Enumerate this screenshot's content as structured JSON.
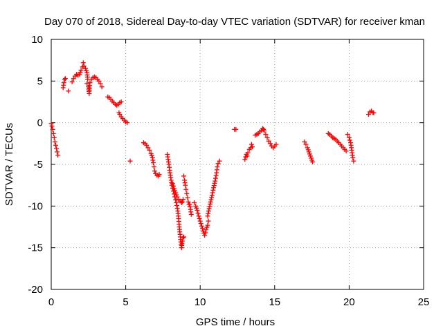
{
  "chart_data": {
    "type": "scatter",
    "title": "Day 070 of 2018, Sidereal Day-to-day VTEC variation (SDTVAR) for receiver kman",
    "xlabel": "GPS time / hours",
    "ylabel": "SDTVAR / TECUs",
    "xlim": [
      0,
      25
    ],
    "ylim": [
      -20,
      10
    ],
    "xticks": [
      0,
      5,
      10,
      15,
      20,
      25
    ],
    "yticks": [
      -20,
      -15,
      -10,
      -5,
      0,
      5,
      10
    ],
    "grid": true,
    "marker": "+",
    "series": [
      {
        "name": "SDTVAR",
        "color": "#ff0000",
        "segments": [
          [
            [
              0.0,
              -0.1
            ],
            [
              0.05,
              -0.4
            ],
            [
              0.1,
              -0.8
            ],
            [
              0.15,
              -1.3
            ],
            [
              0.2,
              -1.8
            ],
            [
              0.25,
              -2.3
            ],
            [
              0.3,
              -2.7
            ],
            [
              0.35,
              -3.1
            ],
            [
              0.4,
              -3.5
            ],
            [
              0.45,
              -3.9
            ]
          ],
          [
            [
              0.8,
              4.2
            ],
            [
              0.85,
              4.8
            ],
            [
              0.9,
              5.2
            ],
            [
              0.95,
              5.3
            ]
          ],
          [
            [
              1.15,
              3.8
            ]
          ],
          [
            [
              1.4,
              4.9
            ],
            [
              1.5,
              5.3
            ],
            [
              1.6,
              5.6
            ],
            [
              1.7,
              5.8
            ],
            [
              1.8,
              5.7
            ],
            [
              1.9,
              5.8
            ],
            [
              2.0,
              6.3
            ],
            [
              2.1,
              6.7
            ],
            [
              2.15,
              7.2
            ],
            [
              2.2,
              6.8
            ],
            [
              2.3,
              6.5
            ],
            [
              2.4,
              6.0
            ],
            [
              2.45,
              5.2
            ]
          ],
          [
            [
              2.4,
              4.7
            ],
            [
              2.5,
              4.3
            ],
            [
              2.55,
              3.5
            ],
            [
              2.6,
              4.8
            ],
            [
              2.7,
              5.2
            ],
            [
              2.8,
              5.4
            ],
            [
              2.9,
              5.5
            ],
            [
              3.0,
              5.4
            ],
            [
              3.1,
              5.2
            ],
            [
              3.2,
              5.0
            ],
            [
              3.3,
              4.7
            ],
            [
              3.4,
              4.3
            ]
          ],
          [
            [
              3.8,
              3.1
            ],
            [
              3.9,
              3.0
            ],
            [
              4.0,
              2.8
            ],
            [
              4.1,
              2.6
            ],
            [
              4.2,
              2.4
            ],
            [
              4.3,
              2.2
            ],
            [
              4.4,
              2.1
            ],
            [
              4.5,
              2.2
            ],
            [
              4.6,
              2.4
            ],
            [
              4.7,
              2.5
            ]
          ],
          [
            [
              4.55,
              1.2
            ],
            [
              4.6,
              1.0
            ],
            [
              4.7,
              0.7
            ],
            [
              4.8,
              0.5
            ],
            [
              4.9,
              0.3
            ],
            [
              5.0,
              0.1
            ],
            [
              5.1,
              0.0
            ]
          ],
          [
            [
              5.3,
              -4.6
            ]
          ],
          [
            [
              6.2,
              -2.4
            ],
            [
              6.3,
              -2.5
            ],
            [
              6.4,
              -2.7
            ],
            [
              6.5,
              -3.0
            ],
            [
              6.6,
              -3.3
            ],
            [
              6.7,
              -3.7
            ],
            [
              6.8,
              -4.2
            ],
            [
              6.85,
              -4.8
            ],
            [
              6.9,
              -5.3
            ],
            [
              6.95,
              -5.8
            ],
            [
              7.0,
              -6.1
            ],
            [
              7.1,
              -6.3
            ],
            [
              7.2,
              -6.4
            ],
            [
              7.25,
              -6.2
            ]
          ],
          [
            [
              7.8,
              -3.8
            ],
            [
              7.85,
              -4.4
            ],
            [
              7.9,
              -5.0
            ],
            [
              7.95,
              -5.7
            ],
            [
              8.0,
              -6.3
            ],
            [
              8.05,
              -6.9
            ],
            [
              8.1,
              -7.5
            ],
            [
              8.2,
              -8.2
            ],
            [
              8.3,
              -8.9
            ],
            [
              8.4,
              -9.6
            ],
            [
              8.5,
              -10.6
            ],
            [
              8.55,
              -11.5
            ],
            [
              8.6,
              -12.5
            ],
            [
              8.65,
              -13.4
            ],
            [
              8.7,
              -14.3
            ],
            [
              8.75,
              -15.0
            ],
            [
              8.8,
              -14.2
            ],
            [
              8.85,
              -13.8
            ],
            [
              8.9,
              -13.7
            ]
          ],
          [
            [
              8.15,
              -7.3
            ],
            [
              8.25,
              -7.9
            ],
            [
              8.35,
              -8.4
            ],
            [
              8.45,
              -8.9
            ],
            [
              8.55,
              -9.2
            ],
            [
              8.65,
              -9.4
            ],
            [
              8.75,
              -9.6
            ],
            [
              8.8,
              -9.5
            ],
            [
              8.85,
              -9.2
            ]
          ],
          [
            [
              8.9,
              -6.4
            ],
            [
              8.95,
              -6.9
            ],
            [
              9.0,
              -7.5
            ],
            [
              9.05,
              -8.0
            ],
            [
              9.1,
              -8.5
            ],
            [
              9.15,
              -9.0
            ],
            [
              9.2,
              -9.5
            ],
            [
              9.25,
              -9.8
            ]
          ],
          [
            [
              9.3,
              -9.8
            ],
            [
              9.35,
              -10.4
            ],
            [
              9.4,
              -11.0
            ]
          ],
          [
            [
              9.6,
              -9.6
            ],
            [
              9.7,
              -10.0
            ],
            [
              9.8,
              -10.5
            ],
            [
              9.9,
              -11.2
            ],
            [
              10.0,
              -11.8
            ],
            [
              10.1,
              -12.4
            ],
            [
              10.2,
              -13.0
            ],
            [
              10.3,
              -13.5
            ],
            [
              10.35,
              -13.2
            ],
            [
              10.4,
              -12.8
            ],
            [
              10.5,
              -12.3
            ],
            [
              10.55,
              -11.8
            ]
          ],
          [
            [
              10.5,
              -11.2
            ],
            [
              10.6,
              -10.3
            ],
            [
              10.7,
              -9.5
            ],
            [
              10.8,
              -8.7
            ],
            [
              10.9,
              -7.8
            ],
            [
              11.0,
              -7.0
            ],
            [
              11.1,
              -6.0
            ],
            [
              11.15,
              -5.3
            ],
            [
              11.2,
              -4.9
            ],
            [
              11.3,
              -4.6
            ]
          ],
          [
            [
              12.3,
              -0.8
            ],
            [
              12.4,
              -0.8
            ]
          ],
          [
            [
              13.0,
              -4.4
            ],
            [
              13.05,
              -4.1
            ],
            [
              13.1,
              -3.8
            ],
            [
              13.15,
              -4.0
            ],
            [
              13.2,
              -3.6
            ],
            [
              13.3,
              -3.2
            ],
            [
              13.4,
              -3.0
            ],
            [
              13.45,
              -2.6
            ],
            [
              13.5,
              -2.9
            ]
          ],
          [
            [
              13.7,
              -1.5
            ],
            [
              13.8,
              -1.4
            ],
            [
              13.9,
              -1.3
            ],
            [
              14.0,
              -1.1
            ],
            [
              14.1,
              -0.9
            ],
            [
              14.2,
              -0.7
            ],
            [
              14.25,
              -0.8
            ],
            [
              14.3,
              -1.0
            ],
            [
              14.4,
              -1.4
            ],
            [
              14.5,
              -1.8
            ],
            [
              14.6,
              -2.2
            ],
            [
              14.7,
              -2.5
            ],
            [
              14.8,
              -2.8
            ],
            [
              14.9,
              -3.0
            ],
            [
              15.0,
              -2.8
            ],
            [
              15.1,
              -2.6
            ]
          ],
          [
            [
              17.0,
              -2.3
            ],
            [
              17.1,
              -2.6
            ],
            [
              17.2,
              -3.0
            ],
            [
              17.3,
              -3.5
            ],
            [
              17.4,
              -4.0
            ],
            [
              17.5,
              -4.5
            ],
            [
              17.55,
              -4.7
            ]
          ],
          [
            [
              18.6,
              -1.3
            ],
            [
              18.7,
              -1.4
            ],
            [
              18.8,
              -1.6
            ],
            [
              18.9,
              -1.8
            ],
            [
              19.0,
              -1.9
            ],
            [
              19.1,
              -2.0
            ],
            [
              19.2,
              -2.2
            ],
            [
              19.3,
              -2.4
            ],
            [
              19.4,
              -2.6
            ],
            [
              19.5,
              -2.8
            ],
            [
              19.6,
              -3.0
            ],
            [
              19.7,
              -3.2
            ],
            [
              19.8,
              -3.4
            ]
          ],
          [
            [
              19.9,
              -1.4
            ],
            [
              20.0,
              -1.8
            ],
            [
              20.1,
              -2.4
            ],
            [
              20.15,
              -3.0
            ],
            [
              20.2,
              -3.6
            ],
            [
              20.25,
              -4.2
            ],
            [
              20.3,
              -4.6
            ]
          ],
          [
            [
              21.3,
              1.0
            ],
            [
              21.4,
              1.3
            ],
            [
              21.5,
              1.4
            ],
            [
              21.6,
              1.2
            ],
            [
              21.65,
              1.2
            ]
          ]
        ]
      }
    ]
  }
}
